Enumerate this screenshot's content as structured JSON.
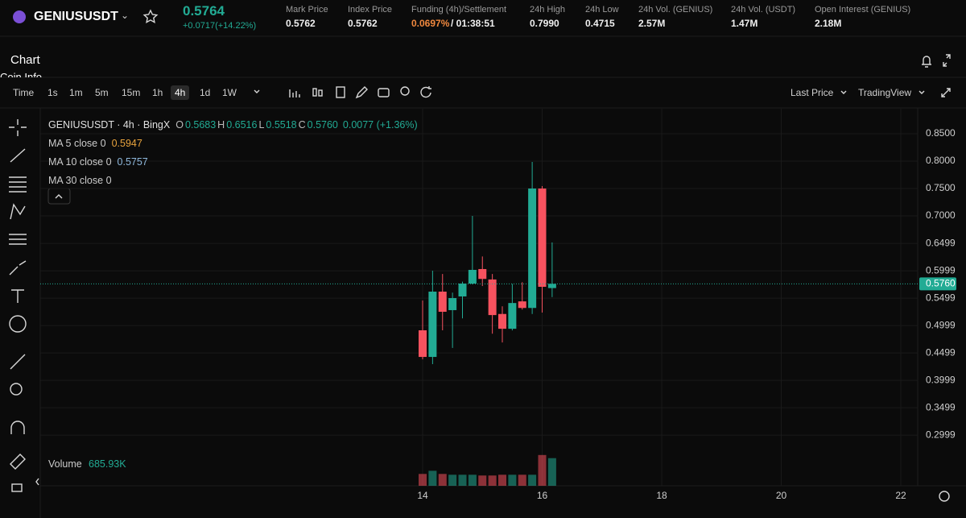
{
  "header": {
    "symbol": "GENIUSUSDT",
    "price": "0.5764",
    "change": "+0.0717(+14.22%)",
    "stats": [
      {
        "label": "Mark Price",
        "value": "0.5762"
      },
      {
        "label": "Index Price",
        "value": "0.5762"
      },
      {
        "label": "Funding (4h)/Settlement",
        "value": "0.0697%",
        "extra": "/ 01:38:51"
      },
      {
        "label": "24h High",
        "value": "0.7990"
      },
      {
        "label": "24h Low",
        "value": "0.4715"
      },
      {
        "label": "24h Vol. (GENIUS)",
        "value": "2.57M"
      },
      {
        "label": "24h Vol. (USDT)",
        "value": "1.47M"
      },
      {
        "label": "Open Interest (GENIUS)",
        "value": "2.18M"
      }
    ]
  },
  "toolbar": {
    "panel_title": "Chart",
    "sub_tab": "Coin Info",
    "intervals": [
      "Time",
      "1s",
      "1m",
      "5m",
      "15m",
      "1h",
      "4h",
      "1d",
      "1W"
    ],
    "active_interval": 6,
    "price_type": "Last Price",
    "chart_mode": "TradingView"
  },
  "legend": {
    "symbol": "GENIUSUSDT · 4h · BingX",
    "ohlc": [
      {
        "label": "O",
        "value": "0.5683"
      },
      {
        "label": "H",
        "value": "0.6516"
      },
      {
        "label": "L",
        "value": "0.5518"
      },
      {
        "label": "C",
        "value": "0.5760"
      }
    ],
    "change": "0.0077 (+1.36%)",
    "indicators": [
      {
        "name": "MA 5 close 0",
        "value": "0.5947",
        "color": "#e8a33d"
      },
      {
        "name": "MA 10 close 0",
        "value": "0.5757",
        "color": "#8fb8dc"
      },
      {
        "name": "MA 30 close 0"
      }
    ],
    "volume_label": "Volume",
    "volume_value": "685.93K"
  },
  "chart_data": {
    "type": "candlestick",
    "x": [
      14,
      14.1667,
      14.3333,
      14.5,
      14.6667,
      14.8333,
      15,
      15.1667,
      15.3333,
      15.5,
      15.6667,
      15.8333,
      16,
      16.1667
    ],
    "open": [
      0.4912,
      0.4426,
      0.5618,
      0.528,
      0.553,
      0.5765,
      0.603,
      0.584,
      0.521,
      0.494,
      0.544,
      0.532,
      0.75,
      0.5683
    ],
    "high": [
      0.5456,
      0.6,
      0.594,
      0.56,
      0.58,
      0.7,
      0.626,
      0.594,
      0.535,
      0.576,
      0.579,
      0.7985,
      0.7544,
      0.6516
    ],
    "low": [
      0.4382,
      0.4294,
      0.4912,
      0.459,
      0.513,
      0.575,
      0.572,
      0.485,
      0.469,
      0.491,
      0.529,
      0.521,
      0.5235,
      0.5518
    ],
    "close": [
      0.4426,
      0.5618,
      0.525,
      0.55,
      0.5765,
      0.6015,
      0.585,
      0.519,
      0.494,
      0.541,
      0.532,
      0.75,
      0.5706,
      0.576
    ],
    "volume": [
      294,
      372,
      294,
      274,
      274,
      274,
      255,
      255,
      274,
      274,
      274,
      274,
      764,
      686
    ],
    "volume_ylim": [
      0,
      2400
    ],
    "up_color": "#22ab94",
    "down_color": "#f7525f",
    "xlim": [
      7.6027,
      22.2828
    ],
    "xticks": [
      14,
      16,
      18,
      20,
      22
    ],
    "ylim": [
      0.2074,
      0.8956
    ],
    "yticks": [
      {
        "value": 0.85,
        "label": "0.8500"
      },
      {
        "value": 0.8,
        "label": "0.8000"
      },
      {
        "value": 0.75,
        "label": "0.7500"
      },
      {
        "value": 0.7,
        "label": "0.7000"
      },
      0.6499,
      0.5999,
      0.5499,
      0.4999,
      0.4499,
      0.3999,
      0.3499,
      0.2999
    ],
    "grid": true,
    "last_price": {
      "value": 0.576,
      "label": "0.5760"
    }
  }
}
